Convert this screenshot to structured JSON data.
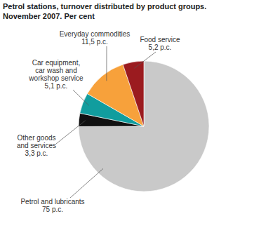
{
  "chart_data": {
    "type": "pie",
    "title": "Petrol stations, turnover distributed by product groups.",
    "subtitle": "November 2007. Per cent",
    "categories": [
      "Petrol and lubricants",
      "Other goods and services",
      "Car equipment, car wash and workshop service",
      "Everyday commodities",
      "Food service"
    ],
    "values": [
      75,
      3.3,
      5.1,
      11.5,
      5.2
    ],
    "value_labels": [
      "75 p.c.",
      "3,3 p.c.",
      "5,1 p.c.",
      "11,5 p.c.",
      "5,2 p.c."
    ],
    "colors": [
      "#c9c9c9",
      "#111111",
      "#119d9e",
      "#f7a13b",
      "#9b1b1f"
    ],
    "data_labels": true
  }
}
